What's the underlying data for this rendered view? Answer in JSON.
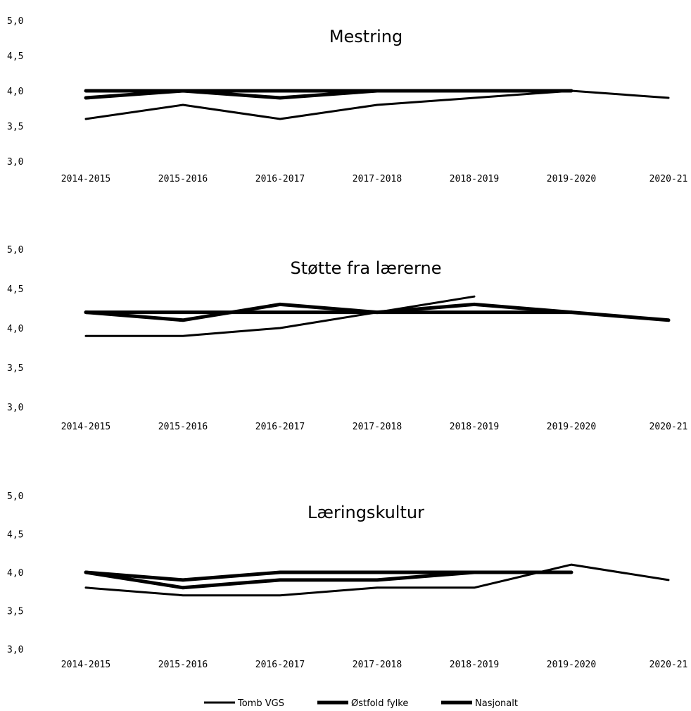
{
  "colors": {
    "line": "#000000",
    "background": "#ffffff"
  },
  "legend": {
    "position": "bottom",
    "items": [
      "Tomb VGS",
      "Østfold fylke",
      "Nasjonalt"
    ]
  },
  "chart_data": [
    {
      "type": "line",
      "title": "Mestring",
      "categories": [
        "2014-2015",
        "2015-2016",
        "2016-2017",
        "2017-2018",
        "2018-2019",
        "2019-2020",
        "2020-21"
      ],
      "yticks": [
        "3,0",
        "3,5",
        "4,0",
        "4,5",
        "5,0"
      ],
      "ylim": [
        3.0,
        5.0
      ],
      "grid": false,
      "series": [
        {
          "name": "Tomb VGS",
          "values": [
            3.6,
            3.8,
            3.6,
            3.8,
            3.9,
            4.0,
            3.9
          ]
        },
        {
          "name": "Østfold fylke",
          "values": [
            3.9,
            4.0,
            3.9,
            4.0,
            4.0,
            null,
            null
          ]
        },
        {
          "name": "Nasjonalt",
          "values": [
            4.0,
            4.0,
            4.0,
            4.0,
            4.0,
            4.0,
            null
          ]
        }
      ]
    },
    {
      "type": "line",
      "title": "Støtte fra lærerne",
      "categories": [
        "2014-2015",
        "2015-2016",
        "2016-2017",
        "2017-2018",
        "2018-2019",
        "2019-2020",
        "2020-21"
      ],
      "yticks": [
        "3,0",
        "3,5",
        "4,0",
        "4,5",
        "5,0"
      ],
      "ylim": [
        3.0,
        5.0
      ],
      "grid": false,
      "series": [
        {
          "name": "Tomb VGS",
          "values": [
            3.9,
            3.9,
            4.0,
            4.2,
            4.4,
            null,
            null
          ]
        },
        {
          "name": "Østfold fylke",
          "values": [
            4.2,
            4.1,
            4.3,
            4.2,
            4.3,
            4.2,
            4.1
          ]
        },
        {
          "name": "Nasjonalt",
          "values": [
            4.2,
            4.2,
            4.2,
            4.2,
            4.2,
            4.2,
            null
          ]
        }
      ]
    },
    {
      "type": "line",
      "title": "Læringskultur",
      "categories": [
        "2014-2015",
        "2015-2016",
        "2016-2017",
        "2017-2018",
        "2018-2019",
        "2019-2020",
        "2020-21"
      ],
      "yticks": [
        "3,0",
        "3,5",
        "4,0",
        "4,5",
        "5,0"
      ],
      "ylim": [
        3.0,
        5.0
      ],
      "grid": false,
      "series": [
        {
          "name": "Tomb VGS",
          "values": [
            3.8,
            3.7,
            3.7,
            3.8,
            3.8,
            4.1,
            3.9
          ]
        },
        {
          "name": "Østfold fylke",
          "values": [
            4.0,
            3.9,
            4.0,
            4.0,
            4.0,
            4.0,
            null
          ]
        },
        {
          "name": "Nasjonalt",
          "values": [
            4.0,
            3.8,
            3.9,
            3.9,
            4.0,
            null,
            null
          ]
        }
      ]
    }
  ]
}
